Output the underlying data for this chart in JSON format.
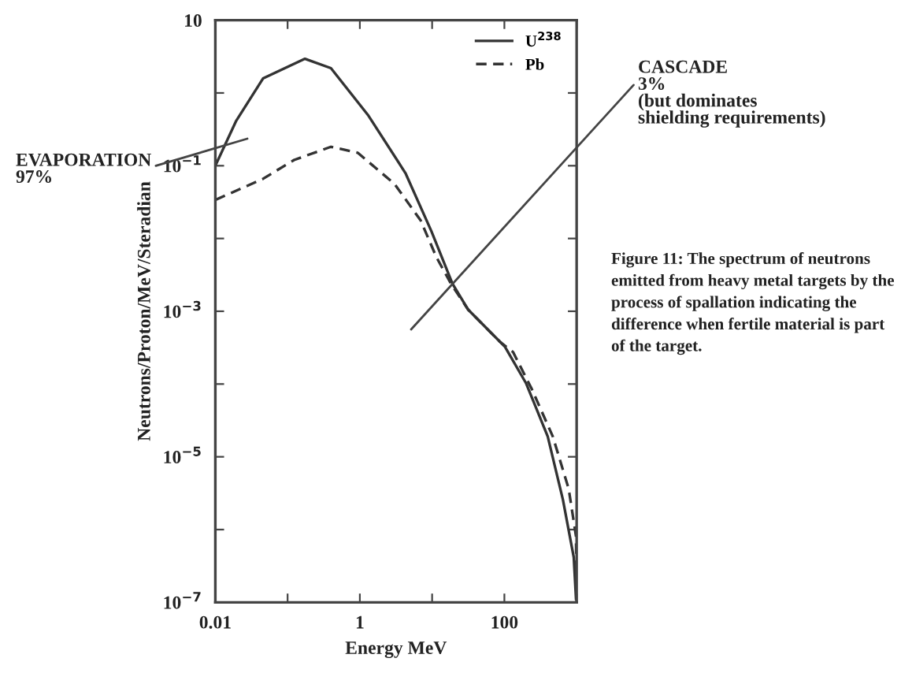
{
  "chart_data": {
    "type": "line",
    "xlabel": "Energy MeV",
    "ylabel": "Neutrons/Proton/MeV/Steradian",
    "log": "xy",
    "grid": false,
    "legend": "top right",
    "marker": "none",
    "xlim": [
      0.01,
      1000
    ],
    "ylim": [
      1e-07,
      10
    ],
    "xticks": [
      0.01,
      {
        "value": 0.1,
        "label": null
      },
      1,
      {
        "value": 10,
        "label": null
      },
      100,
      {
        "value": 1000,
        "label": null
      }
    ],
    "yticks": [
      {
        "value": 1e-07,
        "label": "10$^{−7}$"
      },
      {
        "value": 1e-06,
        "label": null
      },
      {
        "value": 1e-05,
        "label": "10$^{−5}$"
      },
      {
        "value": 0.0001,
        "label": null
      },
      {
        "value": 0.001,
        "label": "10$^{−3}$"
      },
      {
        "value": 0.01,
        "label": null
      },
      {
        "value": 0.1,
        "label": "10$^{−1}$"
      },
      {
        "value": 1,
        "label": null
      },
      {
        "value": 10,
        "label": "10"
      }
    ],
    "series": [
      {
        "name": "U$^{238}$",
        "color": "#333333",
        "line_style": "solid",
        "x": [
          0.01,
          0.0195,
          0.0457,
          0.174,
          0.398,
          1.29,
          4.27,
          9.77,
          19.1,
          31.6,
          87.1,
          102,
          200,
          398,
          646,
          912,
          980
        ],
        "values": [
          0.1,
          0.417,
          1.58,
          2.95,
          2.19,
          0.501,
          0.0794,
          0.0126,
          0.0024,
          0.00105,
          0.00038,
          0.000324,
          0.000102,
          1.9e-05,
          2.57e-06,
          4.17e-07,
          1.12e-07
        ]
      },
      {
        "name": "Pb",
        "color": "#333333",
        "line_style": "dashed",
        "x": [
          0.01,
          0.0457,
          0.123,
          0.398,
          0.933,
          3.02,
          6.92,
          11.5,
          18.2,
          31.6,
          87.1,
          132,
          240,
          468,
          776,
          980,
          1000
        ],
        "values": [
          0.0339,
          0.0661,
          0.12,
          0.182,
          0.151,
          0.0562,
          0.0178,
          0.0055,
          0.0024,
          0.00105,
          0.00038,
          0.000275,
          8.5e-05,
          1.9e-05,
          3.63e-06,
          8.1e-07,
          1e-07
        ]
      }
    ],
    "annotations": [
      "EVAPORATION\n97%",
      "CASCADE\n3%\n(but dominates\nshielding requirements)",
      "Figure 11: The spectrum of neutrons emitted from heavy metal targets by the process of spallation indicating the difference when fertile material is part of the target."
    ]
  }
}
